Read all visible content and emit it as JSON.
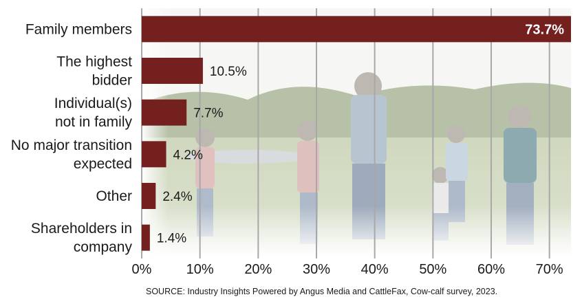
{
  "chart_data": {
    "type": "bar",
    "orientation": "horizontal",
    "categories": [
      [
        "Family members"
      ],
      [
        "The highest",
        "bidder"
      ],
      [
        "Individual(s)",
        "not in family"
      ],
      [
        "No major transition",
        "expected"
      ],
      [
        "Other"
      ],
      [
        "Shareholders in",
        "company"
      ]
    ],
    "values": [
      73.7,
      10.5,
      7.7,
      4.2,
      2.4,
      1.4
    ],
    "value_labels": [
      "73.7%",
      "10.5%",
      "7.7%",
      "4.2%",
      "2.4%",
      "1.4%"
    ],
    "xlim": [
      0,
      73.7
    ],
    "x_ticks": [
      0,
      10,
      20,
      30,
      40,
      50,
      60,
      70
    ],
    "x_tick_labels": [
      "0%",
      "10%",
      "20%",
      "30%",
      "40%",
      "50%",
      "60%",
      "70%"
    ],
    "grid": "vertical",
    "legend": "none",
    "background": "faded photograph of a family walking in a pasture",
    "source": "SOURCE: Industry Insights Powered by Angus Media and CattleFax, Cow-calf survey, 2023.",
    "colors": {
      "bar": "#73201f",
      "grid": "#a8a8a8",
      "inside_label": "#ffffff"
    }
  }
}
